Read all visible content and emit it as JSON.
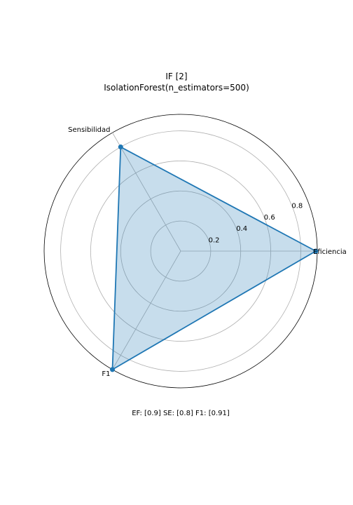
{
  "chart_data": {
    "type": "radar",
    "title": "IF [2]",
    "subtitle": "IsolationForest(n_estimators=500)",
    "axes": [
      "Eficiencia",
      "Sensibilidad",
      "F1"
    ],
    "series": [
      {
        "values": [
          0.9,
          0.8,
          0.91
        ]
      }
    ],
    "radial_ticks": [
      0.2,
      0.4,
      0.6,
      0.8
    ],
    "radial_tick_labels": [
      "0.2",
      "0.4",
      "0.6",
      "0.8"
    ],
    "rmax": 0.91,
    "grid": true,
    "line_color": "#1f77b4",
    "fill_color": "#1f77b4"
  },
  "footer": "EF: [0.9] SE: [0.8] F1: [0.91]"
}
